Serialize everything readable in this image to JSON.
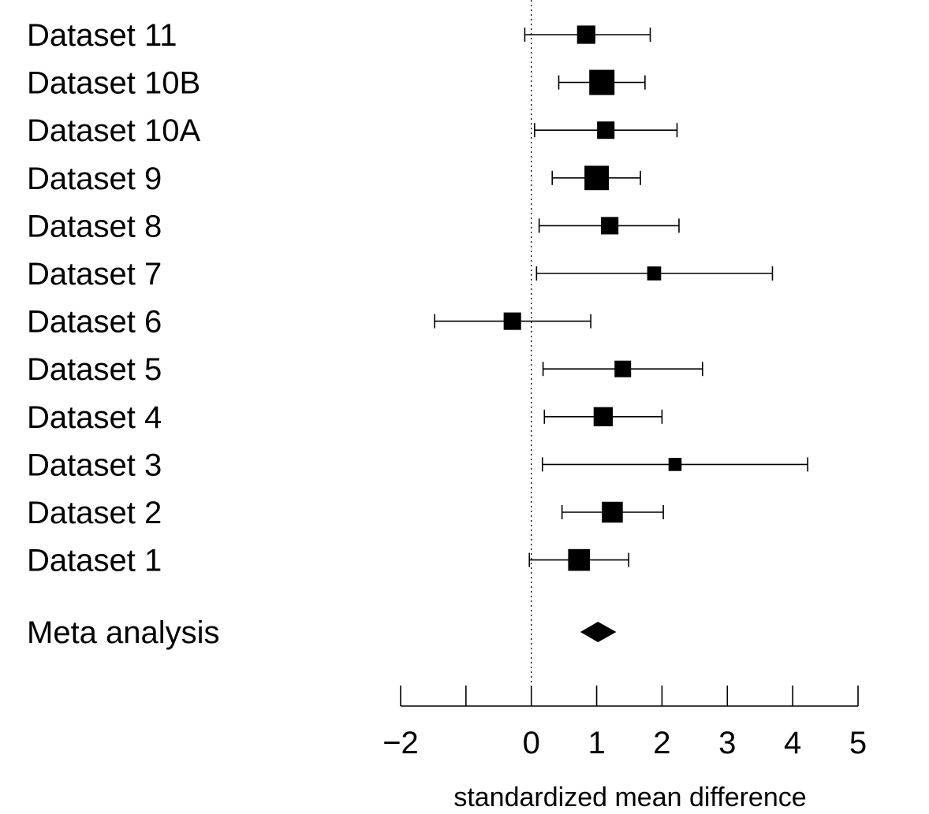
{
  "chart_data": {
    "type": "forest",
    "xlabel": "standardized mean difference",
    "xlim": [
      -2,
      5
    ],
    "xticks": [
      -2,
      -1,
      0,
      1,
      2,
      3,
      4,
      5
    ],
    "xtick_labels": [
      "−2",
      "",
      "0",
      "1",
      "2",
      "3",
      "4",
      "5"
    ],
    "reference_line": 0,
    "studies": [
      {
        "label": "Dataset 11",
        "estimate": 0.84,
        "lower": -0.1,
        "upper": 1.82,
        "weight": 0.6
      },
      {
        "label": "Dataset 10B",
        "estimate": 1.08,
        "lower": 0.42,
        "upper": 1.74,
        "weight": 1.0
      },
      {
        "label": "Dataset 10A",
        "estimate": 1.14,
        "lower": 0.05,
        "upper": 2.23,
        "weight": 0.55
      },
      {
        "label": "Dataset 9",
        "estimate": 1.0,
        "lower": 0.32,
        "upper": 1.67,
        "weight": 0.95
      },
      {
        "label": "Dataset 8",
        "estimate": 1.2,
        "lower": 0.12,
        "upper": 2.26,
        "weight": 0.55
      },
      {
        "label": "Dataset 7",
        "estimate": 1.88,
        "lower": 0.08,
        "upper": 3.69,
        "weight": 0.35
      },
      {
        "label": "Dataset 6",
        "estimate": -0.29,
        "lower": -1.48,
        "upper": 0.91,
        "weight": 0.55
      },
      {
        "label": "Dataset 5",
        "estimate": 1.4,
        "lower": 0.18,
        "upper": 2.62,
        "weight": 0.5
      },
      {
        "label": "Dataset 4",
        "estimate": 1.1,
        "lower": 0.2,
        "upper": 2.0,
        "weight": 0.65
      },
      {
        "label": "Dataset 3",
        "estimate": 2.2,
        "lower": 0.17,
        "upper": 4.23,
        "weight": 0.3
      },
      {
        "label": "Dataset 2",
        "estimate": 1.24,
        "lower": 0.47,
        "upper": 2.02,
        "weight": 0.75
      },
      {
        "label": "Dataset 1",
        "estimate": 0.73,
        "lower": -0.03,
        "upper": 1.49,
        "weight": 0.8
      }
    ],
    "summary": {
      "label": "Meta analysis",
      "estimate": 1.02,
      "lower": 0.75,
      "upper": 1.3
    }
  }
}
